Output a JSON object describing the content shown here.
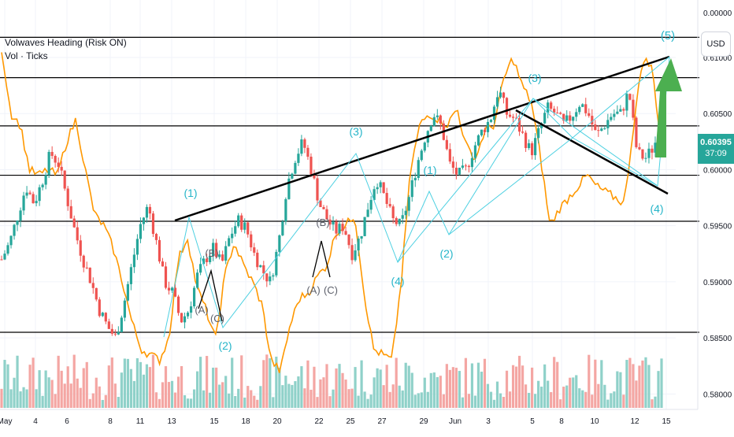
{
  "legend": {
    "indicator_title": "Volwaves Heading (Risk ON)",
    "volume_label": "Vol · Ticks"
  },
  "currency_button": "USD",
  "current_price": {
    "value": "0.60395",
    "countdown": "37:09",
    "color": "#26a69a"
  },
  "price_axis": {
    "top_label": "0.00000",
    "ticks": [
      "0.61000",
      "0.60500",
      "0.60000",
      "0.59500",
      "0.59000",
      "0.58500",
      "0.58000"
    ]
  },
  "horizontal_levels": [
    0.6118,
    0.6082,
    0.6039,
    0.5995,
    0.5954,
    0.5855
  ],
  "time_axis": {
    "ticks": [
      "May",
      "4",
      "6",
      "8",
      "11",
      "13",
      "15",
      "18",
      "20",
      "22",
      "25",
      "27",
      "29",
      "Jun",
      "3",
      "5",
      "8",
      "10",
      "12",
      "15"
    ]
  },
  "wave_labels": {
    "blue": [
      "(1)",
      "(2)",
      "(3)",
      "(4)",
      "(1)",
      "(2)",
      "(3)",
      "(4)",
      "(5)"
    ],
    "grey": [
      "(B)",
      "(A)",
      "(C)",
      "(B)",
      "(A)",
      "(C)"
    ]
  },
  "colors": {
    "bull": "#26a69a",
    "bear": "#ef5350",
    "oscillator": "#ff9800",
    "wave_line": "#4dd0e1",
    "wave_label": "#26b5c9",
    "trendline": "#000000",
    "arrow": "#4caf50",
    "grid": "#f0f3fa"
  },
  "chart_data": {
    "type": "candlestick",
    "ylim": [
      0.5775,
      0.614
    ],
    "price_path": [
      0.592,
      0.5935,
      0.596,
      0.5985,
      0.597,
      0.599,
      0.6015,
      0.6005,
      0.5975,
      0.5945,
      0.592,
      0.59,
      0.5875,
      0.586,
      0.585,
      0.588,
      0.5915,
      0.595,
      0.5968,
      0.5935,
      0.59,
      0.589,
      0.5865,
      0.5875,
      0.5905,
      0.592,
      0.593,
      0.5915,
      0.594,
      0.5955,
      0.5948,
      0.5925,
      0.591,
      0.59,
      0.5935,
      0.5985,
      0.601,
      0.6025,
      0.6,
      0.597,
      0.5955,
      0.5945,
      0.595,
      0.5925,
      0.594,
      0.5968,
      0.5992,
      0.5975,
      0.5955,
      0.595,
      0.5975,
      0.6005,
      0.603,
      0.605,
      0.6038,
      0.6005,
      0.5995,
      0.6,
      0.602,
      0.6035,
      0.6045,
      0.6072,
      0.605,
      0.6045,
      0.603,
      0.6015,
      0.6035,
      0.6055,
      0.605,
      0.604,
      0.6048,
      0.606,
      0.605,
      0.603,
      0.604,
      0.605,
      0.605,
      0.607,
      0.6015,
      0.601,
      0.602,
      0.604
    ],
    "oscillator_path": [
      0.6108,
      0.605,
      0.604,
      0.6,
      0.5995,
      0.6,
      0.5995,
      0.6025,
      0.6045,
      0.6,
      0.596,
      0.595,
      0.593,
      0.59,
      0.5865,
      0.584,
      0.5835,
      0.583,
      0.585,
      0.592,
      0.594,
      0.5895,
      0.5875,
      0.5848,
      0.5905,
      0.5935,
      0.5915,
      0.59,
      0.588,
      0.583,
      0.582,
      0.586,
      0.5885,
      0.589,
      0.5905,
      0.5915,
      0.5945,
      0.595,
      0.596,
      0.589,
      0.584,
      0.5835,
      0.583,
      0.59,
      0.6,
      0.604,
      0.605,
      0.6045,
      0.604,
      0.6055,
      0.602,
      0.601,
      0.6035,
      0.604,
      0.608,
      0.61,
      0.6075,
      0.606,
      0.601,
      0.595,
      0.5965,
      0.5975,
      0.5985,
      0.5995,
      0.5985,
      0.598,
      0.5975,
      0.597,
      0.604,
      0.61,
      0.609,
      0.602
    ]
  }
}
